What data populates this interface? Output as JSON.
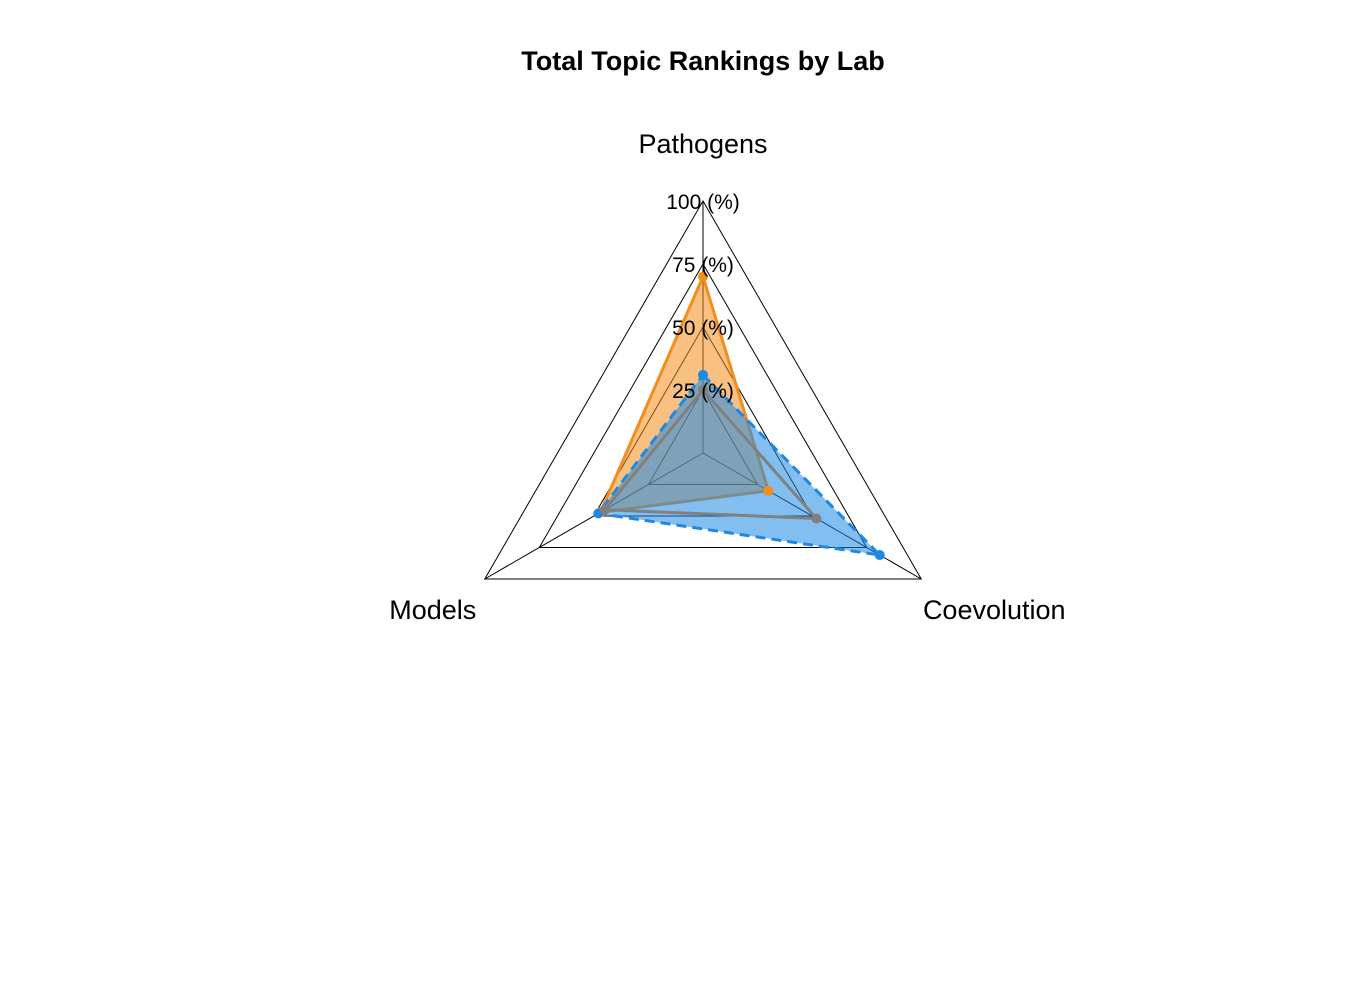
{
  "chart_data": {
    "type": "radar",
    "title": "Total Topic Rankings by Lab",
    "axes": [
      "Pathogens",
      "Coevolution",
      "Models"
    ],
    "ticks": [
      {
        "value": 25,
        "label": "25 (%)"
      },
      {
        "value": 50,
        "label": "50 (%)"
      },
      {
        "value": 75,
        "label": "75 (%)"
      },
      {
        "value": 100,
        "label": "100 (%)"
      }
    ],
    "range": [
      0,
      100
    ],
    "grid": true,
    "series": [
      {
        "values": [
          70,
          30,
          47
        ],
        "color": "#F28E1C",
        "fill": "#F28E1C",
        "fill_opacity": 0.55,
        "line_style": "solid"
      },
      {
        "values": [
          31,
          81,
          48
        ],
        "color": "#1E88E5",
        "fill": "#1E88E5",
        "fill_opacity": 0.55,
        "line_style": "dashed"
      },
      {
        "values": [
          25,
          52,
          45
        ],
        "color": "#808080",
        "fill": "#808080",
        "fill_opacity": 0.0,
        "line_style": "solid"
      }
    ]
  }
}
